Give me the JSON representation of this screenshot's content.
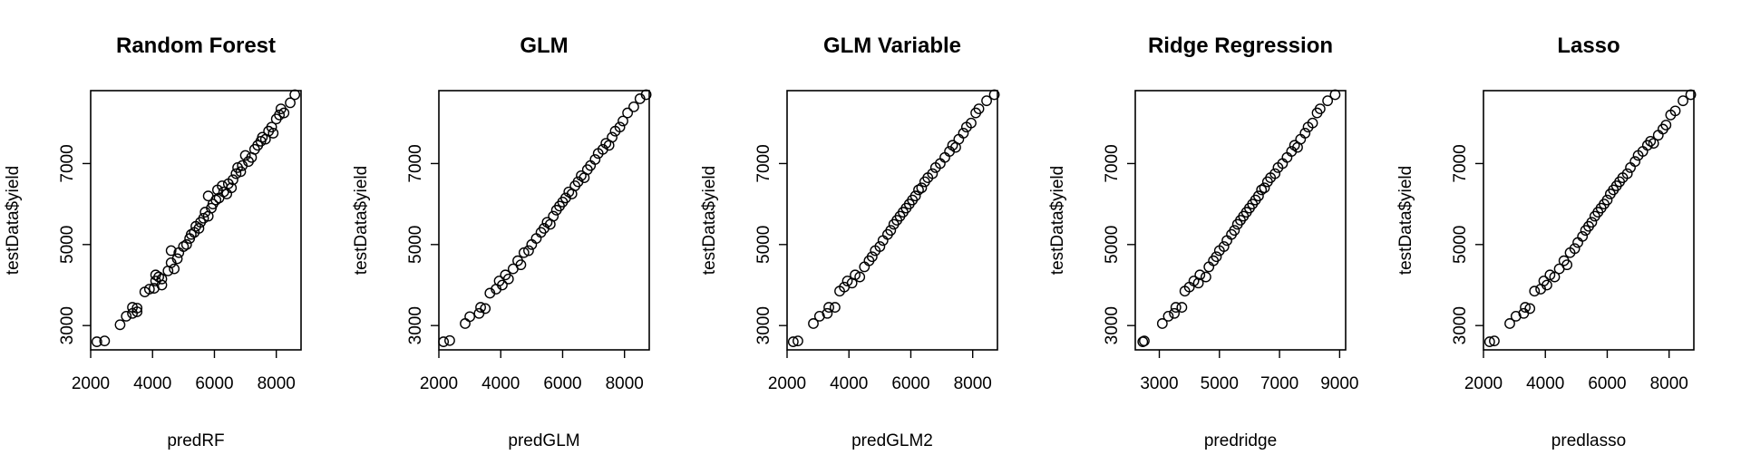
{
  "chart_data": [
    {
      "type": "scatter",
      "title": "Random Forest",
      "xlabel": "predRF",
      "ylabel": "testData$yield",
      "xlim": [
        2000,
        8800
      ],
      "ylim": [
        2400,
        8800
      ],
      "xticks": [
        2000,
        4000,
        6000,
        8000
      ],
      "yticks": [
        3000,
        5000,
        7000
      ],
      "xtick_labels": [
        "2000",
        "4000",
        "6000",
        "8000"
      ],
      "ytick_labels": [
        "3000",
        "5000",
        "7000"
      ],
      "grid": false,
      "points": [
        {
          "x": 2200,
          "y": 2600
        },
        {
          "x": 2450,
          "y": 2620
        },
        {
          "x": 2950,
          "y": 3020
        },
        {
          "x": 3150,
          "y": 3230
        },
        {
          "x": 3350,
          "y": 3300
        },
        {
          "x": 3350,
          "y": 3450
        },
        {
          "x": 3500,
          "y": 3430
        },
        {
          "x": 3500,
          "y": 3340
        },
        {
          "x": 3750,
          "y": 3830
        },
        {
          "x": 3900,
          "y": 3900
        },
        {
          "x": 4050,
          "y": 3920
        },
        {
          "x": 4100,
          "y": 4100
        },
        {
          "x": 4100,
          "y": 4250
        },
        {
          "x": 4200,
          "y": 4200
        },
        {
          "x": 4300,
          "y": 4150
        },
        {
          "x": 4300,
          "y": 4000
        },
        {
          "x": 4500,
          "y": 4350
        },
        {
          "x": 4600,
          "y": 4550
        },
        {
          "x": 4600,
          "y": 4850
        },
        {
          "x": 4700,
          "y": 4400
        },
        {
          "x": 4800,
          "y": 4650
        },
        {
          "x": 4850,
          "y": 4800
        },
        {
          "x": 5000,
          "y": 4950
        },
        {
          "x": 5100,
          "y": 5000
        },
        {
          "x": 5200,
          "y": 5150
        },
        {
          "x": 5250,
          "y": 5250
        },
        {
          "x": 5350,
          "y": 5300
        },
        {
          "x": 5400,
          "y": 5450
        },
        {
          "x": 5500,
          "y": 5400
        },
        {
          "x": 5550,
          "y": 5550
        },
        {
          "x": 5650,
          "y": 5650
        },
        {
          "x": 5700,
          "y": 5800
        },
        {
          "x": 5800,
          "y": 5700
        },
        {
          "x": 5800,
          "y": 6200
        },
        {
          "x": 5900,
          "y": 5900
        },
        {
          "x": 5950,
          "y": 6000
        },
        {
          "x": 6050,
          "y": 6100
        },
        {
          "x": 6100,
          "y": 6350
        },
        {
          "x": 6150,
          "y": 6150
        },
        {
          "x": 6250,
          "y": 6450
        },
        {
          "x": 6300,
          "y": 6300
        },
        {
          "x": 6400,
          "y": 6250
        },
        {
          "x": 6450,
          "y": 6500
        },
        {
          "x": 6550,
          "y": 6400
        },
        {
          "x": 6600,
          "y": 6600
        },
        {
          "x": 6700,
          "y": 6750
        },
        {
          "x": 6750,
          "y": 6900
        },
        {
          "x": 6850,
          "y": 6800
        },
        {
          "x": 6900,
          "y": 6950
        },
        {
          "x": 7000,
          "y": 7200
        },
        {
          "x": 7100,
          "y": 7050
        },
        {
          "x": 7200,
          "y": 7150
        },
        {
          "x": 7300,
          "y": 7350
        },
        {
          "x": 7400,
          "y": 7450
        },
        {
          "x": 7500,
          "y": 7550
        },
        {
          "x": 7550,
          "y": 7650
        },
        {
          "x": 7650,
          "y": 7600
        },
        {
          "x": 7750,
          "y": 7800
        },
        {
          "x": 7850,
          "y": 7900
        },
        {
          "x": 7900,
          "y": 7750
        },
        {
          "x": 8000,
          "y": 8100
        },
        {
          "x": 8100,
          "y": 8200
        },
        {
          "x": 8150,
          "y": 8350
        },
        {
          "x": 8250,
          "y": 8250
        },
        {
          "x": 8450,
          "y": 8500
        },
        {
          "x": 8600,
          "y": 8700
        }
      ]
    },
    {
      "type": "scatter",
      "title": "GLM",
      "xlabel": "predGLM",
      "ylabel": "testData$yield",
      "xlim": [
        2000,
        8800
      ],
      "ylim": [
        2400,
        8800
      ],
      "xticks": [
        2000,
        4000,
        6000,
        8000
      ],
      "yticks": [
        3000,
        5000,
        7000
      ],
      "xtick_labels": [
        "2000",
        "4000",
        "6000",
        "8000"
      ],
      "ytick_labels": [
        "3000",
        "5000",
        "7000"
      ],
      "grid": false,
      "points": [
        {
          "x": 2150,
          "y": 2600
        },
        {
          "x": 2350,
          "y": 2630
        },
        {
          "x": 2850,
          "y": 3050
        },
        {
          "x": 3000,
          "y": 3220
        },
        {
          "x": 3300,
          "y": 3300
        },
        {
          "x": 3350,
          "y": 3450
        },
        {
          "x": 3500,
          "y": 3420
        },
        {
          "x": 3650,
          "y": 3800
        },
        {
          "x": 3850,
          "y": 3900
        },
        {
          "x": 3950,
          "y": 4100
        },
        {
          "x": 4050,
          "y": 4000
        },
        {
          "x": 4150,
          "y": 4250
        },
        {
          "x": 4250,
          "y": 4150
        },
        {
          "x": 4400,
          "y": 4400
        },
        {
          "x": 4550,
          "y": 4600
        },
        {
          "x": 4650,
          "y": 4500
        },
        {
          "x": 4750,
          "y": 4800
        },
        {
          "x": 4900,
          "y": 4850
        },
        {
          "x": 5000,
          "y": 5000
        },
        {
          "x": 5150,
          "y": 5150
        },
        {
          "x": 5300,
          "y": 5300
        },
        {
          "x": 5400,
          "y": 5400
        },
        {
          "x": 5500,
          "y": 5550
        },
        {
          "x": 5600,
          "y": 5500
        },
        {
          "x": 5700,
          "y": 5700
        },
        {
          "x": 5800,
          "y": 5850
        },
        {
          "x": 5900,
          "y": 5950
        },
        {
          "x": 6000,
          "y": 6050
        },
        {
          "x": 6100,
          "y": 6150
        },
        {
          "x": 6200,
          "y": 6300
        },
        {
          "x": 6300,
          "y": 6250
        },
        {
          "x": 6400,
          "y": 6450
        },
        {
          "x": 6500,
          "y": 6550
        },
        {
          "x": 6600,
          "y": 6700
        },
        {
          "x": 6700,
          "y": 6650
        },
        {
          "x": 6800,
          "y": 6850
        },
        {
          "x": 6900,
          "y": 6950
        },
        {
          "x": 7050,
          "y": 7100
        },
        {
          "x": 7150,
          "y": 7250
        },
        {
          "x": 7300,
          "y": 7350
        },
        {
          "x": 7400,
          "y": 7500
        },
        {
          "x": 7500,
          "y": 7450
        },
        {
          "x": 7600,
          "y": 7650
        },
        {
          "x": 7700,
          "y": 7800
        },
        {
          "x": 7850,
          "y": 7900
        },
        {
          "x": 7950,
          "y": 8050
        },
        {
          "x": 8100,
          "y": 8250
        },
        {
          "x": 8300,
          "y": 8400
        },
        {
          "x": 8500,
          "y": 8600
        },
        {
          "x": 8700,
          "y": 8700
        }
      ]
    },
    {
      "type": "scatter",
      "title": "GLM Variable",
      "xlabel": "predGLM2",
      "ylabel": "testData$yield",
      "xlim": [
        2000,
        8800
      ],
      "ylim": [
        2400,
        8800
      ],
      "xticks": [
        2000,
        4000,
        6000,
        8000
      ],
      "yticks": [
        3000,
        5000,
        7000
      ],
      "xtick_labels": [
        "2000",
        "4000",
        "6000",
        "8000"
      ],
      "ytick_labels": [
        "3000",
        "5000",
        "7000"
      ],
      "grid": false,
      "points": [
        {
          "x": 2200,
          "y": 2600
        },
        {
          "x": 2350,
          "y": 2620
        },
        {
          "x": 2850,
          "y": 3050
        },
        {
          "x": 3050,
          "y": 3230
        },
        {
          "x": 3300,
          "y": 3300
        },
        {
          "x": 3350,
          "y": 3450
        },
        {
          "x": 3550,
          "y": 3450
        },
        {
          "x": 3700,
          "y": 3850
        },
        {
          "x": 3850,
          "y": 3950
        },
        {
          "x": 3950,
          "y": 4100
        },
        {
          "x": 4100,
          "y": 4050
        },
        {
          "x": 4200,
          "y": 4250
        },
        {
          "x": 4350,
          "y": 4200
        },
        {
          "x": 4500,
          "y": 4450
        },
        {
          "x": 4650,
          "y": 4600
        },
        {
          "x": 4750,
          "y": 4700
        },
        {
          "x": 4850,
          "y": 4850
        },
        {
          "x": 5000,
          "y": 4950
        },
        {
          "x": 5100,
          "y": 5100
        },
        {
          "x": 5250,
          "y": 5250
        },
        {
          "x": 5350,
          "y": 5350
        },
        {
          "x": 5450,
          "y": 5500
        },
        {
          "x": 5550,
          "y": 5600
        },
        {
          "x": 5650,
          "y": 5700
        },
        {
          "x": 5750,
          "y": 5800
        },
        {
          "x": 5850,
          "y": 5900
        },
        {
          "x": 5950,
          "y": 6000
        },
        {
          "x": 6050,
          "y": 6100
        },
        {
          "x": 6150,
          "y": 6200
        },
        {
          "x": 6250,
          "y": 6350
        },
        {
          "x": 6350,
          "y": 6400
        },
        {
          "x": 6450,
          "y": 6550
        },
        {
          "x": 6550,
          "y": 6650
        },
        {
          "x": 6700,
          "y": 6750
        },
        {
          "x": 6800,
          "y": 6900
        },
        {
          "x": 6950,
          "y": 7000
        },
        {
          "x": 7100,
          "y": 7150
        },
        {
          "x": 7250,
          "y": 7300
        },
        {
          "x": 7350,
          "y": 7450
        },
        {
          "x": 7450,
          "y": 7400
        },
        {
          "x": 7550,
          "y": 7600
        },
        {
          "x": 7700,
          "y": 7750
        },
        {
          "x": 7800,
          "y": 7900
        },
        {
          "x": 7950,
          "y": 8000
        },
        {
          "x": 8100,
          "y": 8250
        },
        {
          "x": 8200,
          "y": 8350
        },
        {
          "x": 8450,
          "y": 8550
        },
        {
          "x": 8700,
          "y": 8700
        }
      ]
    },
    {
      "type": "scatter",
      "title": "Ridge Regression",
      "xlabel": "predridge",
      "ylabel": "testData$yield",
      "xlim": [
        2200,
        9200
      ],
      "ylim": [
        2400,
        8800
      ],
      "xticks": [
        3000,
        5000,
        7000,
        9000
      ],
      "yticks": [
        3000,
        5000,
        7000
      ],
      "xtick_labels": [
        "3000",
        "5000",
        "7000",
        "9000"
      ],
      "ytick_labels": [
        "3000",
        "5000",
        "7000"
      ],
      "grid": false,
      "points": [
        {
          "x": 2450,
          "y": 2600
        },
        {
          "x": 2500,
          "y": 2620
        },
        {
          "x": 3100,
          "y": 3050
        },
        {
          "x": 3300,
          "y": 3230
        },
        {
          "x": 3500,
          "y": 3300
        },
        {
          "x": 3550,
          "y": 3450
        },
        {
          "x": 3750,
          "y": 3450
        },
        {
          "x": 3850,
          "y": 3850
        },
        {
          "x": 4000,
          "y": 3950
        },
        {
          "x": 4150,
          "y": 4100
        },
        {
          "x": 4300,
          "y": 4050
        },
        {
          "x": 4350,
          "y": 4250
        },
        {
          "x": 4550,
          "y": 4200
        },
        {
          "x": 4650,
          "y": 4450
        },
        {
          "x": 4800,
          "y": 4600
        },
        {
          "x": 4900,
          "y": 4700
        },
        {
          "x": 5000,
          "y": 4850
        },
        {
          "x": 5150,
          "y": 4950
        },
        {
          "x": 5250,
          "y": 5100
        },
        {
          "x": 5400,
          "y": 5250
        },
        {
          "x": 5500,
          "y": 5350
        },
        {
          "x": 5600,
          "y": 5500
        },
        {
          "x": 5700,
          "y": 5600
        },
        {
          "x": 5800,
          "y": 5700
        },
        {
          "x": 5900,
          "y": 5800
        },
        {
          "x": 6000,
          "y": 5900
        },
        {
          "x": 6100,
          "y": 6000
        },
        {
          "x": 6200,
          "y": 6100
        },
        {
          "x": 6300,
          "y": 6200
        },
        {
          "x": 6400,
          "y": 6350
        },
        {
          "x": 6500,
          "y": 6400
        },
        {
          "x": 6600,
          "y": 6550
        },
        {
          "x": 6700,
          "y": 6650
        },
        {
          "x": 6850,
          "y": 6750
        },
        {
          "x": 6950,
          "y": 6900
        },
        {
          "x": 7100,
          "y": 7000
        },
        {
          "x": 7250,
          "y": 7150
        },
        {
          "x": 7400,
          "y": 7300
        },
        {
          "x": 7500,
          "y": 7450
        },
        {
          "x": 7600,
          "y": 7400
        },
        {
          "x": 7700,
          "y": 7600
        },
        {
          "x": 7850,
          "y": 7750
        },
        {
          "x": 7950,
          "y": 7900
        },
        {
          "x": 8100,
          "y": 8000
        },
        {
          "x": 8250,
          "y": 8250
        },
        {
          "x": 8350,
          "y": 8350
        },
        {
          "x": 8600,
          "y": 8550
        },
        {
          "x": 8850,
          "y": 8700
        }
      ]
    },
    {
      "type": "scatter",
      "title": "Lasso",
      "xlabel": "predlasso",
      "ylabel": "testData$yield",
      "xlim": [
        2000,
        8800
      ],
      "ylim": [
        2400,
        8800
      ],
      "xticks": [
        2000,
        4000,
        6000,
        8000
      ],
      "yticks": [
        3000,
        5000,
        7000
      ],
      "xtick_labels": [
        "2000",
        "4000",
        "6000",
        "8000"
      ],
      "ytick_labels": [
        "3000",
        "5000",
        "7000"
      ],
      "grid": false,
      "points": [
        {
          "x": 2200,
          "y": 2600
        },
        {
          "x": 2350,
          "y": 2620
        },
        {
          "x": 2850,
          "y": 3050
        },
        {
          "x": 3050,
          "y": 3230
        },
        {
          "x": 3300,
          "y": 3300
        },
        {
          "x": 3350,
          "y": 3450
        },
        {
          "x": 3500,
          "y": 3420
        },
        {
          "x": 3650,
          "y": 3850
        },
        {
          "x": 3850,
          "y": 3900
        },
        {
          "x": 3950,
          "y": 4100
        },
        {
          "x": 4050,
          "y": 4000
        },
        {
          "x": 4150,
          "y": 4250
        },
        {
          "x": 4300,
          "y": 4200
        },
        {
          "x": 4450,
          "y": 4400
        },
        {
          "x": 4600,
          "y": 4600
        },
        {
          "x": 4700,
          "y": 4500
        },
        {
          "x": 4800,
          "y": 4800
        },
        {
          "x": 4950,
          "y": 4900
        },
        {
          "x": 5050,
          "y": 5050
        },
        {
          "x": 5200,
          "y": 5200
        },
        {
          "x": 5300,
          "y": 5350
        },
        {
          "x": 5400,
          "y": 5450
        },
        {
          "x": 5500,
          "y": 5550
        },
        {
          "x": 5600,
          "y": 5700
        },
        {
          "x": 5700,
          "y": 5800
        },
        {
          "x": 5800,
          "y": 5900
        },
        {
          "x": 5900,
          "y": 6000
        },
        {
          "x": 6000,
          "y": 6100
        },
        {
          "x": 6100,
          "y": 6250
        },
        {
          "x": 6200,
          "y": 6350
        },
        {
          "x": 6300,
          "y": 6450
        },
        {
          "x": 6400,
          "y": 6550
        },
        {
          "x": 6500,
          "y": 6650
        },
        {
          "x": 6650,
          "y": 6750
        },
        {
          "x": 6750,
          "y": 6900
        },
        {
          "x": 6900,
          "y": 7050
        },
        {
          "x": 7000,
          "y": 7200
        },
        {
          "x": 7150,
          "y": 7300
        },
        {
          "x": 7300,
          "y": 7450
        },
        {
          "x": 7400,
          "y": 7550
        },
        {
          "x": 7500,
          "y": 7500
        },
        {
          "x": 7650,
          "y": 7700
        },
        {
          "x": 7800,
          "y": 7850
        },
        {
          "x": 7900,
          "y": 7950
        },
        {
          "x": 8050,
          "y": 8200
        },
        {
          "x": 8200,
          "y": 8300
        },
        {
          "x": 8450,
          "y": 8550
        },
        {
          "x": 8700,
          "y": 8700
        }
      ]
    }
  ]
}
